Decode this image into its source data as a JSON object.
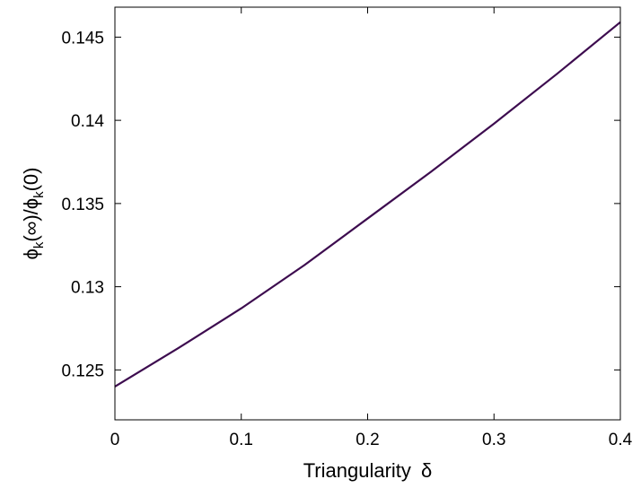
{
  "chart_data": {
    "type": "line",
    "xlabel": {
      "text": "Triangularity",
      "symbol": "δ"
    },
    "ylabel": {
      "parts": [
        {
          "t": "ϕ",
          "sub": false
        },
        {
          "t": "k",
          "sub": true
        },
        {
          "t": "(∞)/ϕ",
          "sub": false
        },
        {
          "t": "k",
          "sub": true
        },
        {
          "t": "(0)",
          "sub": false
        }
      ]
    },
    "xlim": [
      0,
      0.4
    ],
    "ylim": [
      0.122,
      0.1468
    ],
    "xticks": [
      {
        "value": 0,
        "label": "0"
      },
      {
        "value": 0.1,
        "label": "0.1"
      },
      {
        "value": 0.2,
        "label": "0.2"
      },
      {
        "value": 0.3,
        "label": "0.3"
      },
      {
        "value": 0.4,
        "label": "0.4"
      }
    ],
    "yticks": [
      {
        "value": 0.125,
        "label": "0.125"
      },
      {
        "value": 0.13,
        "label": "0.13"
      },
      {
        "value": 0.135,
        "label": "0.135"
      },
      {
        "value": 0.14,
        "label": "0.14"
      },
      {
        "value": 0.145,
        "label": "0.145"
      }
    ],
    "grid": false,
    "legend": "none",
    "series": [
      {
        "color": "#3d0c4f",
        "x": [
          0,
          0.05,
          0.1,
          0.15,
          0.2,
          0.25,
          0.3,
          0.35,
          0.4
        ],
        "y": [
          0.124,
          0.1263,
          0.1287,
          0.1313,
          0.1341,
          0.1369,
          0.1398,
          0.1428,
          0.1459
        ]
      }
    ]
  }
}
